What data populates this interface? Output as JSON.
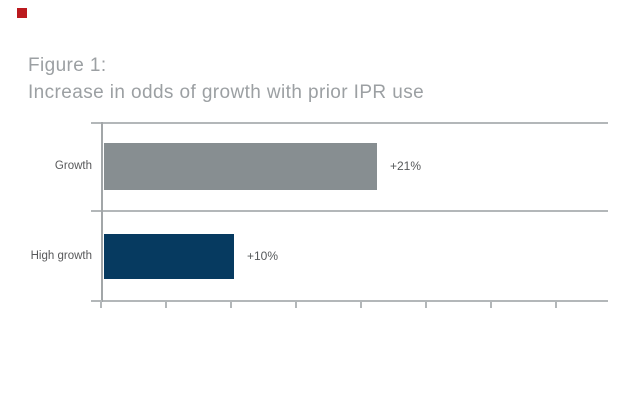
{
  "figure": {
    "label": "Figure 1:",
    "title": "Increase in odds of growth with prior IPR use"
  },
  "corner_marker": {
    "color": "#bb1a1e"
  },
  "chart_data": {
    "type": "bar",
    "orientation": "horizontal",
    "title": "Increase in odds of growth with prior IPR use",
    "categories": [
      "Growth",
      "High growth"
    ],
    "values": [
      21,
      10
    ],
    "value_labels": [
      "+21%",
      "+10%"
    ],
    "series_colors": [
      "#878e91",
      "#063a60"
    ],
    "xlabel": "",
    "ylabel": "",
    "xlim": [
      0,
      35
    ],
    "x_tick_interval": 5,
    "x_tick_labels_visible": false,
    "grid": "horizontal",
    "gridline_color": "#b3b7b9",
    "axis_color": "#a2a6a8",
    "label_color": "#58595b",
    "title_color": "#9ca0a3",
    "legend": "none"
  }
}
